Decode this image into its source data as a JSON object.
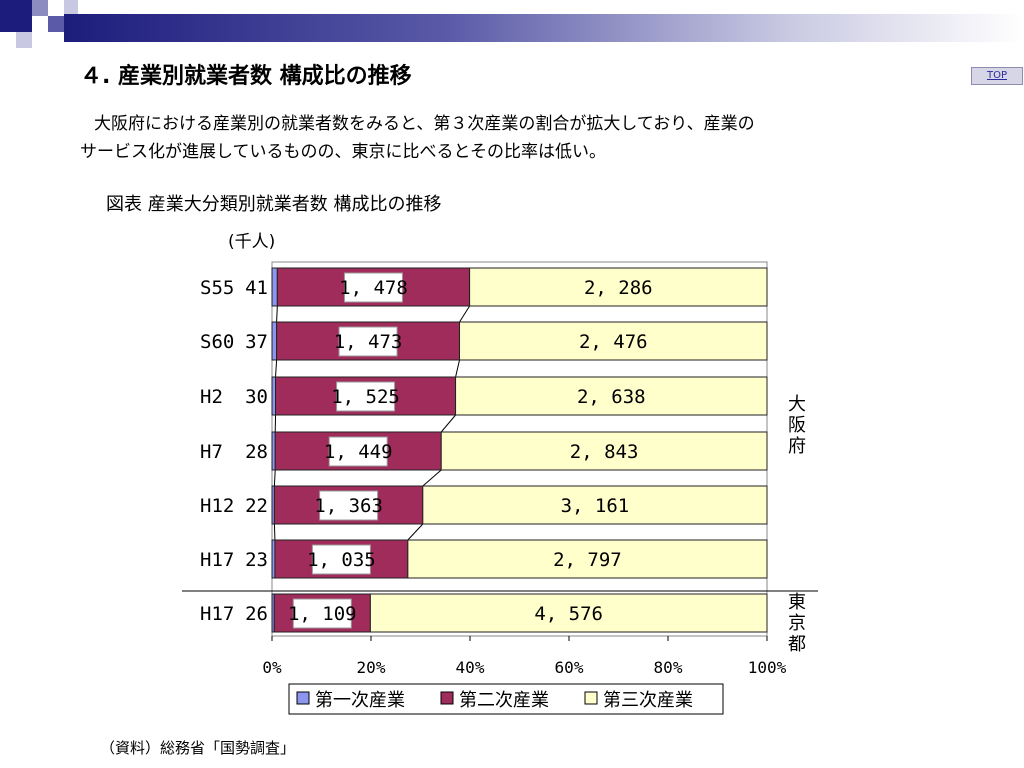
{
  "slide": {
    "title": "４. 産業別就業者数 構成比の推移",
    "top_button": "TOP",
    "body_lines": [
      "大阪府における産業別の就業者数をみると、第３次産業の割合が拡大しており、産業の",
      "サービス化が進展しているものの、東京に比べるとその比率は低い。"
    ],
    "figure_caption": "図表 産業大分類別就業者数 構成比の推移",
    "source_note": "（資料）総務省「国勢調査」"
  },
  "chart_data": {
    "type": "bar",
    "orientation": "horizontal",
    "stacked": "percent",
    "unit_label": "(千人)",
    "categories": [
      "S55",
      "S60",
      "H2",
      "H7",
      "H12",
      "H17",
      "H17"
    ],
    "series": [
      {
        "name": "第一次産業",
        "values": [
          41,
          37,
          30,
          28,
          22,
          23,
          26
        ],
        "labels": [
          "41",
          "37",
          "30",
          "28",
          "22",
          "23",
          "26"
        ],
        "color": "#8c96ee"
      },
      {
        "name": "第二次産業",
        "values": [
          1478,
          1473,
          1525,
          1449,
          1363,
          1035,
          1109
        ],
        "labels": [
          "1, 478",
          "1, 473",
          "1, 525",
          "1, 449",
          "1, 363",
          "1, 035",
          "1, 109"
        ],
        "color": "#a02c5c"
      },
      {
        "name": "第三次産業",
        "values": [
          2286,
          2476,
          2638,
          2843,
          3161,
          2797,
          4576
        ],
        "labels": [
          "2, 286",
          "2, 476",
          "2, 638",
          "2, 843",
          "3, 161",
          "2, 797",
          "4, 576"
        ],
        "color": "#ffffcc"
      }
    ],
    "x_ticks": [
      "0%",
      "20%",
      "40%",
      "60%",
      "80%",
      "100%"
    ],
    "xlim": [
      0,
      100
    ],
    "groups": [
      {
        "label": "大阪府",
        "rows": [
          0,
          1,
          2,
          3,
          4,
          5
        ]
      },
      {
        "label": "東京都",
        "rows": [
          6
        ]
      }
    ],
    "legend_position": "bottom",
    "grid": false
  }
}
